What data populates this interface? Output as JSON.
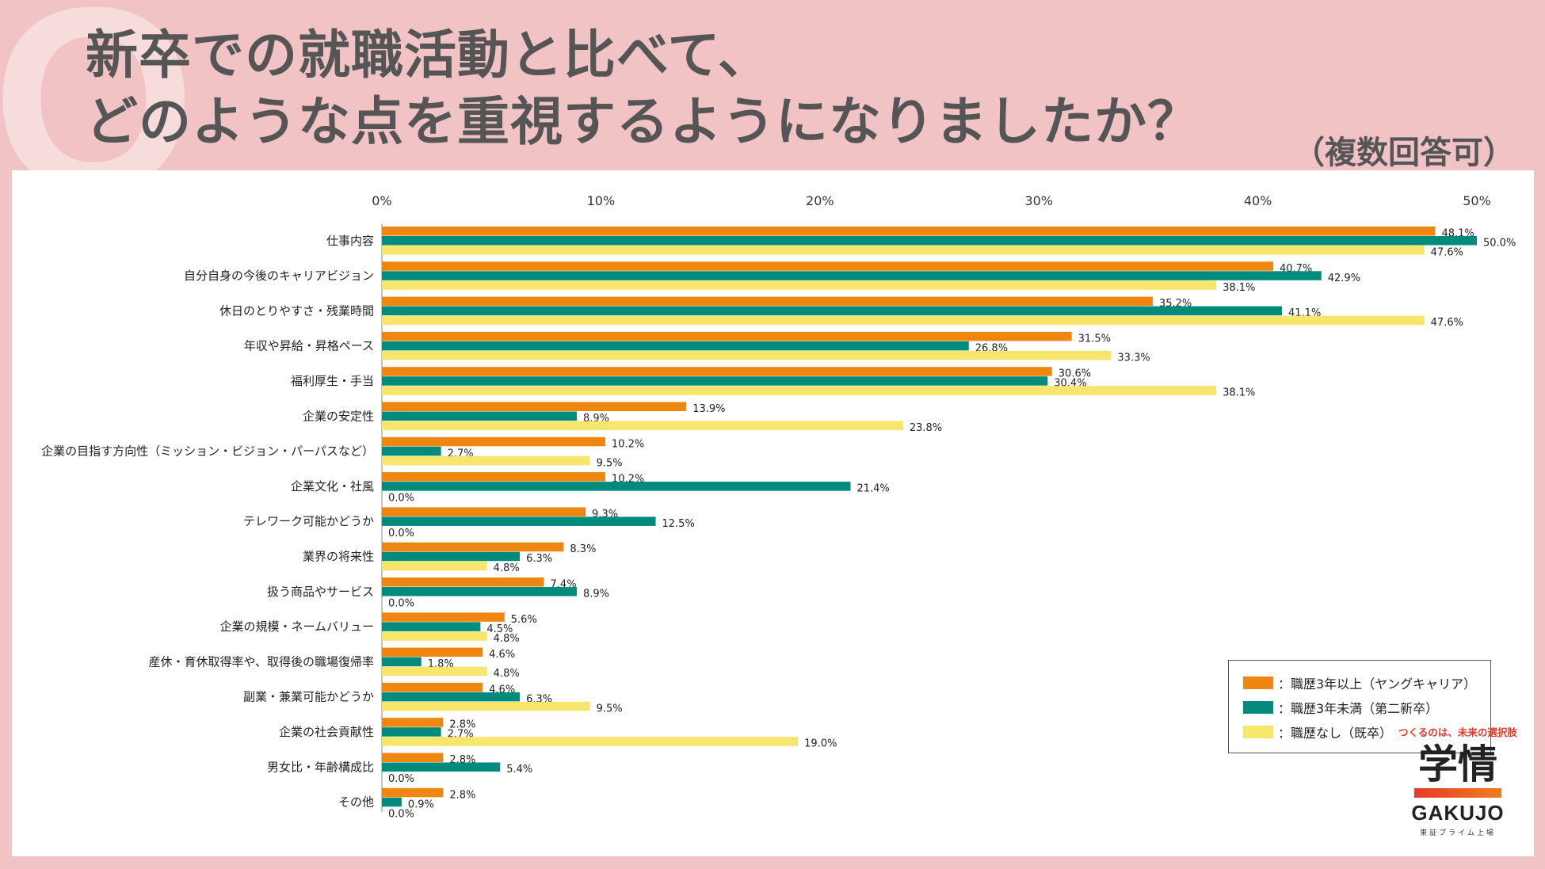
{
  "header": {
    "title_line1": "新卒での就職活動と比べて、",
    "title_line2": "どのような点を重視するようになりましたか？",
    "note": "（複数回答可）",
    "q_mark": "Q"
  },
  "colors": {
    "orange": "#ef8610",
    "teal": "#008b7c",
    "yellow": "#f8e56b",
    "background": "#f2c3c4"
  },
  "chart_data": {
    "type": "bar",
    "orientation": "horizontal",
    "title": "",
    "xlabel": "",
    "ylabel": "",
    "xlim": [
      0,
      50
    ],
    "x_ticks": [
      "0%",
      "10%",
      "20%",
      "30%",
      "40%",
      "50%"
    ],
    "categories": [
      "仕事内容",
      "自分自身の今後のキャリアビジョン",
      "休日のとりやすさ・残業時間",
      "年収や昇給・昇格ペース",
      "福利厚生・手当",
      "企業の安定性",
      "企業の目指す方向性（ミッション・ビジョン・パーパスなど）",
      "企業文化・社風",
      "テレワーク可能かどうか",
      "業界の将来性",
      "扱う商品やサービス",
      "企業の規模・ネームバリュー",
      "産休・育休取得率や、取得後の職場復帰率",
      "副業・兼業可能かどうか",
      "企業の社会貢献性",
      "男女比・年齢構成比",
      "その他"
    ],
    "series": [
      {
        "name": "：職歴3年以上（ヤングキャリア）",
        "color": "#ef8610",
        "values": [
          48.1,
          40.7,
          35.2,
          31.5,
          30.6,
          13.9,
          10.2,
          10.2,
          9.3,
          8.3,
          7.4,
          5.6,
          4.6,
          4.6,
          2.8,
          2.8,
          2.8
        ],
        "labels": [
          "48.1%",
          "40.7%",
          "35.2%",
          "31.5%",
          "30.6%",
          "13.9%",
          "10.2%",
          "10.2%",
          "9.3%",
          "8.3%",
          "7.4%",
          "5.6%",
          "4.6%",
          "4.6%",
          "2.8%",
          "2.8%",
          "2.8%"
        ]
      },
      {
        "name": "：職歴3年未満（第二新卒）",
        "color": "#008b7c",
        "values": [
          50.0,
          42.9,
          41.1,
          26.8,
          30.4,
          8.9,
          2.7,
          21.4,
          12.5,
          6.3,
          8.9,
          4.5,
          1.8,
          6.3,
          2.7,
          5.4,
          0.9
        ],
        "labels": [
          "50.0%",
          "42.9%",
          "41.1%",
          "26.8%",
          "30.4%",
          "8.9%",
          "2.7%",
          "21.4%",
          "12.5%",
          "6.3%",
          "8.9%",
          "4.5%",
          "1.8%",
          "6.3%",
          "2.7%",
          "5.4%",
          "0.9%"
        ]
      },
      {
        "name": "：職歴なし（既卒）",
        "color": "#f8e56b",
        "values": [
          47.6,
          38.1,
          47.6,
          33.3,
          38.1,
          23.8,
          9.5,
          0.0,
          0.0,
          4.8,
          0.0,
          4.8,
          4.8,
          9.5,
          19.0,
          0.0,
          0.0
        ],
        "labels": [
          "47.6%",
          "38.1%",
          "47.6%",
          "33.3%",
          "38.1%",
          "23.8%",
          "9.5%",
          "0.0%",
          "0.0%",
          "4.8%",
          "0.0%",
          "4.8%",
          "4.8%",
          "9.5%",
          "19.0%",
          "0.0%",
          "0.0%"
        ]
      }
    ],
    "legend_position": "right-middle"
  },
  "logo": {
    "tagline": "つくるのは、未来の選択肢",
    "brand_jp": "学情",
    "brand_en": "GAKUJO",
    "listed": "東証プライム上場"
  }
}
